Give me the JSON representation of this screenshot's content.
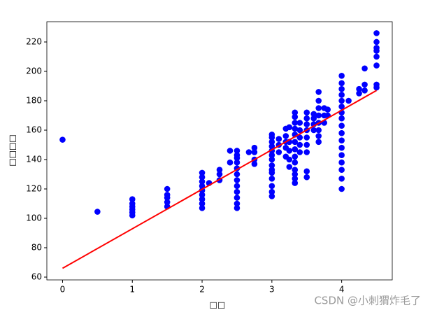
{
  "chart_data": {
    "type": "scatter",
    "x_label": "□□",
    "y_label": "□□□□",
    "points": {
      "color": "#0000ff",
      "x": [
        0,
        0.5,
        1,
        1,
        1,
        1,
        1,
        1,
        1.5,
        1.5,
        1.5,
        1.5,
        1.5,
        2,
        2,
        2,
        2,
        2,
        2,
        2,
        2,
        2,
        2.1,
        2.25,
        2.25,
        2.25,
        2.4,
        2.4,
        2.5,
        2.5,
        2.5,
        2.5,
        2.5,
        2.5,
        2.5,
        2.5,
        2.5,
        2.5,
        2.5,
        2.5,
        2.67,
        2.75,
        2.75,
        2.75,
        2.75,
        3,
        3,
        3,
        3,
        3,
        3,
        3,
        3,
        3,
        3,
        3,
        3,
        3,
        3,
        3.1,
        3.1,
        3.1,
        3.2,
        3.2,
        3.2,
        3.2,
        3.2,
        3.25,
        3.25,
        3.25,
        3.25,
        3.25,
        3.33,
        3.33,
        3.33,
        3.33,
        3.33,
        3.33,
        3.33,
        3.33,
        3.33,
        3.33,
        3.33,
        3.33,
        3.33,
        3.4,
        3.4,
        3.4,
        3.4,
        3.4,
        3.5,
        3.5,
        3.5,
        3.5,
        3.5,
        3.5,
        3.5,
        3.5,
        3.5,
        3.6,
        3.6,
        3.6,
        3.6,
        3.67,
        3.67,
        3.67,
        3.67,
        3.67,
        3.67,
        3.67,
        3.67,
        3.75,
        3.75,
        3.75,
        3.8,
        3.8,
        4,
        4,
        4,
        4,
        4,
        4,
        4,
        4,
        4,
        4,
        4,
        4,
        4,
        4,
        4,
        4,
        4,
        4.1,
        4.25,
        4.25,
        4.33,
        4.33,
        4.33,
        4.5,
        4.5,
        4.5,
        4.5,
        4.5,
        4.5,
        4.5,
        4.5
      ],
      "values": [
        153.5,
        104.5,
        102,
        104,
        106,
        108,
        110,
        113,
        108,
        111,
        114,
        116,
        120,
        107,
        110,
        113,
        116,
        119,
        122,
        125,
        128,
        131,
        124,
        126,
        130,
        133,
        138,
        146,
        107,
        110,
        114,
        118,
        122,
        126,
        130,
        134,
        138,
        141,
        143,
        146,
        145,
        137,
        140,
        145,
        148,
        115,
        118,
        122,
        127,
        131,
        133,
        136,
        140,
        143,
        146,
        149,
        152,
        155,
        157,
        145,
        150,
        154,
        142,
        148,
        152,
        156,
        161,
        135,
        140,
        146,
        152,
        162,
        124,
        127,
        130,
        133,
        138,
        142,
        147,
        152,
        157,
        161,
        165,
        169,
        172,
        145,
        150,
        155,
        160,
        165,
        128,
        132,
        145,
        150,
        155,
        160,
        164,
        168,
        172,
        160,
        164,
        168,
        171,
        152,
        156,
        160,
        165,
        170,
        175,
        180,
        186,
        165,
        170,
        175,
        170,
        174,
        120,
        127,
        133,
        138,
        143,
        148,
        153,
        158,
        163,
        168,
        172,
        176,
        180,
        184,
        188,
        192,
        197,
        180,
        185,
        188,
        187,
        191,
        202,
        189,
        191,
        204,
        210,
        214,
        216,
        220,
        226
      ]
    },
    "fit": {
      "color": "#ff0000",
      "x": [
        0,
        4.5
      ],
      "values": [
        66,
        187
      ]
    },
    "xlim": [
      -0.225,
      4.725
    ],
    "xticks": [
      0,
      1,
      2,
      3,
      4
    ],
    "ylim": [
      58.1,
      233.8
    ],
    "yticks": [
      60,
      80,
      100,
      120,
      140,
      160,
      180,
      200,
      220
    ]
  },
  "watermark": "CSDN @小刺猬炸毛了"
}
